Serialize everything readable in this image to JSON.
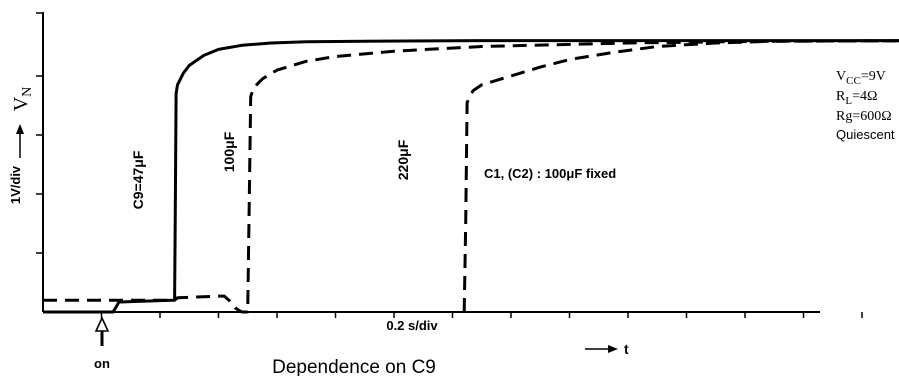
{
  "chart_data": {
    "type": "line",
    "title": "Dependence on C9",
    "xlabel": "t",
    "ylabel": "V",
    "ylabel_sub": "N",
    "y_unit_label": "1V/div",
    "x_unit_label": "0.2 s/div",
    "x_marker_label": "on",
    "xlim": [
      0,
      3.16
    ],
    "ylim": [
      0,
      4.7
    ],
    "grid": false,
    "series": [
      {
        "name": "C9=47μF",
        "style": "solid",
        "x": [
          0,
          0.24,
          0.26,
          0.44,
          0.45,
          0.452,
          0.455,
          0.46,
          0.48,
          0.5,
          0.55,
          0.6,
          0.68,
          0.78,
          0.9,
          1.1,
          1.5,
          2.5,
          3.16
        ],
        "y": [
          0,
          0,
          0.17,
          0.2,
          0.2,
          1.5,
          3.7,
          3.85,
          4.05,
          4.18,
          4.35,
          4.45,
          4.52,
          4.56,
          4.58,
          4.59,
          4.6,
          4.6,
          4.6
        ]
      },
      {
        "name": "100μF",
        "style": "dashed",
        "x": [
          0,
          0.45,
          0.46,
          0.55,
          0.6,
          0.62,
          0.64,
          0.66,
          0.68,
          0.7,
          0.705,
          0.71,
          0.72,
          0.75,
          0.8,
          0.9,
          1.0,
          1.2,
          1.5,
          2.0,
          2.5,
          3.16
        ],
        "y": [
          0.2,
          0.2,
          0.24,
          0.26,
          0.27,
          0.27,
          0.18,
          0.06,
          0,
          0,
          1.8,
          3.65,
          3.8,
          3.95,
          4.1,
          4.25,
          4.33,
          4.42,
          4.5,
          4.56,
          4.59,
          4.6
        ]
      },
      {
        "name": "220μF",
        "style": "dashed",
        "x": [
          1.44,
          1.445,
          1.45,
          1.47,
          1.5,
          1.6,
          1.7,
          1.8,
          1.95,
          2.1,
          2.3,
          2.5,
          3.16
        ],
        "y": [
          0,
          1.5,
          3.55,
          3.75,
          3.85,
          4.0,
          4.15,
          4.28,
          4.4,
          4.5,
          4.56,
          4.59,
          4.6
        ]
      }
    ],
    "conditions": {
      "vcc": "V",
      "vcc_sub": "CC",
      "vcc_value": "=9V",
      "rl": "R",
      "rl_sub": "L",
      "rl_value": "=4Ω",
      "rg": "Rg=600Ω",
      "mode": "Quiescent"
    },
    "annotation": "C1, (C2) : 100μF fixed"
  }
}
